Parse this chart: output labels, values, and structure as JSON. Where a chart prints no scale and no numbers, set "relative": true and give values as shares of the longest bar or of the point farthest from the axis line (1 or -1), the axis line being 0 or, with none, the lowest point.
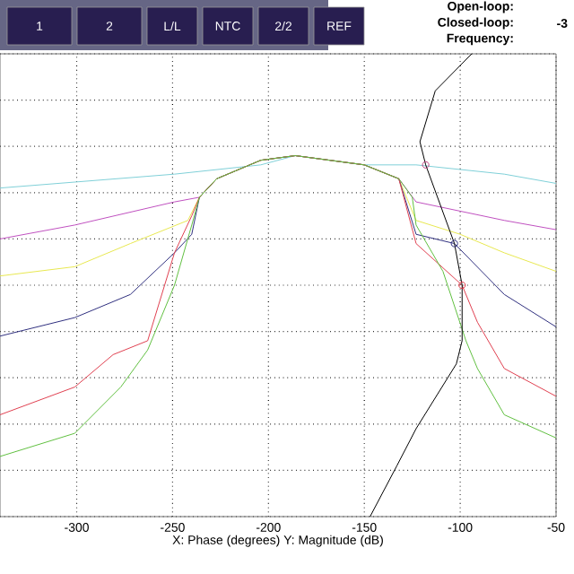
{
  "chart_data": {
    "type": "line",
    "relative": true,
    "xlabel": "X: Phase (degrees)  Y: Magnitude (dB)",
    "xlim": [
      -340,
      -50
    ],
    "xticks": [
      -300,
      -250,
      -200,
      -150,
      -100,
      -50
    ],
    "grid": true,
    "annotations": [
      "1",
      "2",
      "L/L",
      "NTC",
      "2/2",
      "REF",
      "Open-loop:",
      "Closed-loop:",
      "-3",
      "Frequency:"
    ],
    "series": [
      {
        "color": "#7fd0d8",
        "x": [
          -340,
          -249,
          -204,
          -186,
          -168,
          -150,
          -132,
          -123,
          -77,
          -50
        ],
        "values": [
          0.71,
          0.74,
          0.76,
          0.78,
          null,
          0.76,
          0.76,
          0.76,
          0.74,
          0.72
        ]
      },
      {
        "color": "#c050c0",
        "x": [
          -340,
          -301,
          -249,
          -236,
          -227,
          -204,
          -186,
          -168,
          -150,
          -132,
          -123,
          -100,
          -77,
          -50
        ],
        "values": [
          0.6,
          0.63,
          0.68,
          0.69,
          0.73,
          0.77,
          0.78,
          0.77,
          0.76,
          0.73,
          0.68,
          0.66,
          0.64,
          0.62
        ]
      },
      {
        "color": "#e8e850",
        "x": [
          -340,
          -301,
          -272,
          -242,
          -236,
          -227,
          -204,
          -186,
          -168,
          -150,
          -132,
          -123,
          -100,
          -77,
          -50
        ],
        "values": [
          0.52,
          0.54,
          0.59,
          0.64,
          0.69,
          0.73,
          0.77,
          0.78,
          0.77,
          0.76,
          0.73,
          0.64,
          0.61,
          0.57,
          0.53
        ]
      },
      {
        "color": "#303080",
        "x": [
          -340,
          -301,
          -272,
          -249,
          -240,
          -236,
          -227,
          -204,
          -186,
          -168,
          -150,
          -132,
          -123,
          -103,
          -77,
          -50
        ],
        "values": [
          0.39,
          0.43,
          0.48,
          0.57,
          0.61,
          0.69,
          0.73,
          0.77,
          0.78,
          0.77,
          0.76,
          0.73,
          0.61,
          0.59,
          0.48,
          0.41
        ]
      },
      {
        "color": "#e04050",
        "x": [
          -340,
          -301,
          -281,
          -263,
          -249,
          -240,
          -236,
          -227,
          -204,
          -186,
          -168,
          -150,
          -132,
          -123,
          -99,
          -91,
          -77,
          -50
        ],
        "values": [
          0.22,
          0.28,
          0.35,
          0.38,
          0.57,
          0.65,
          0.69,
          0.73,
          0.77,
          0.78,
          0.77,
          0.76,
          0.73,
          0.59,
          0.5,
          0.42,
          0.32,
          0.26
        ]
      },
      {
        "color": "#60c040",
        "x": [
          -340,
          -301,
          -277,
          -263,
          -249,
          -240,
          -236,
          -227,
          -204,
          -186,
          -168,
          -150,
          -132,
          -125,
          -123,
          -109,
          -97,
          -91,
          -77,
          -50
        ],
        "values": [
          0.13,
          0.18,
          0.28,
          0.36,
          0.5,
          0.63,
          0.69,
          0.73,
          0.77,
          0.78,
          0.77,
          0.76,
          0.73,
          0.69,
          0.63,
          0.53,
          0.38,
          0.32,
          0.22,
          0.17
        ]
      },
      {
        "color": "#000000",
        "x": [
          -94,
          -113,
          -121,
          -118,
          -103,
          -99,
          -99,
          -102,
          -123,
          -133,
          -147
        ],
        "values": [
          1.0,
          0.92,
          0.81,
          0.76,
          0.59,
          0.5,
          0.38,
          0.33,
          0.19,
          0.11,
          0
        ]
      },
      {
        "type": "scatter",
        "marker": "circle",
        "colors": [
          "#c04080",
          "#303080",
          "#e03040"
        ],
        "x": [
          -118,
          -103,
          -99
        ],
        "values": [
          0.76,
          0.59,
          0.5
        ]
      }
    ]
  }
}
